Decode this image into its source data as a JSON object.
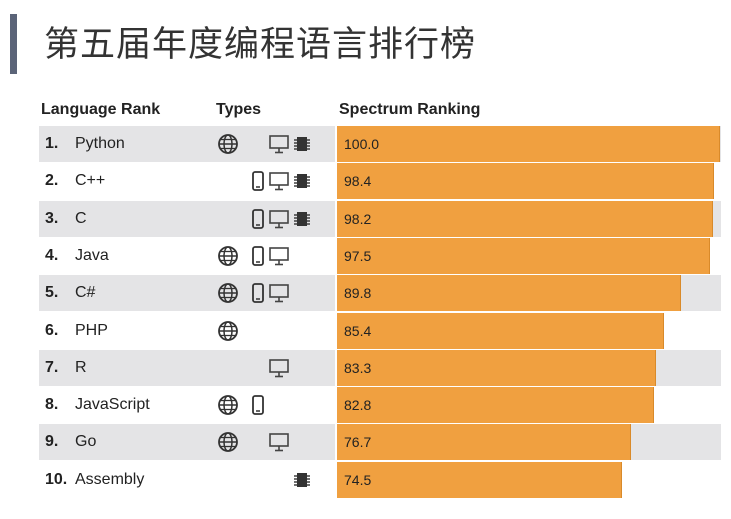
{
  "title": "第五届年度编程语言排行榜",
  "headers": {
    "language_rank": "Language Rank",
    "types": "Types",
    "spectrum_ranking": "Spectrum Ranking"
  },
  "colors": {
    "bar": "#f0a040",
    "stripe": "#e4e4e6"
  },
  "chart_data": {
    "type": "bar",
    "orientation": "horizontal",
    "xlim": [
      0,
      100
    ],
    "rows": [
      {
        "rank": "1.",
        "language": "Python",
        "value": 100.0,
        "value_label": "100.0",
        "types": [
          "web-icon",
          "desktop-icon",
          "embedded-icon"
        ]
      },
      {
        "rank": "2.",
        "language": "C++",
        "value": 98.4,
        "value_label": "98.4",
        "types": [
          "mobile-icon",
          "desktop-icon",
          "embedded-icon"
        ]
      },
      {
        "rank": "3.",
        "language": "C",
        "value": 98.2,
        "value_label": "98.2",
        "types": [
          "mobile-icon",
          "desktop-icon",
          "embedded-icon"
        ]
      },
      {
        "rank": "4.",
        "language": "Java",
        "value": 97.5,
        "value_label": "97.5",
        "types": [
          "web-icon",
          "mobile-icon",
          "desktop-icon"
        ]
      },
      {
        "rank": "5.",
        "language": "C#",
        "value": 89.8,
        "value_label": "89.8",
        "types": [
          "web-icon",
          "mobile-icon",
          "desktop-icon"
        ]
      },
      {
        "rank": "6.",
        "language": "PHP",
        "value": 85.4,
        "value_label": "85.4",
        "types": [
          "web-icon"
        ]
      },
      {
        "rank": "7.",
        "language": "R",
        "value": 83.3,
        "value_label": "83.3",
        "types": [
          "desktop-icon"
        ]
      },
      {
        "rank": "8.",
        "language": "JavaScript",
        "value": 82.8,
        "value_label": "82.8",
        "types": [
          "web-icon",
          "mobile-icon"
        ]
      },
      {
        "rank": "9.",
        "language": "Go",
        "value": 76.7,
        "value_label": "76.7",
        "types": [
          "web-icon",
          "desktop-icon"
        ]
      },
      {
        "rank": "10.",
        "language": "Assembly",
        "value": 74.5,
        "value_label": "74.5",
        "types": [
          "embedded-icon"
        ]
      }
    ]
  }
}
